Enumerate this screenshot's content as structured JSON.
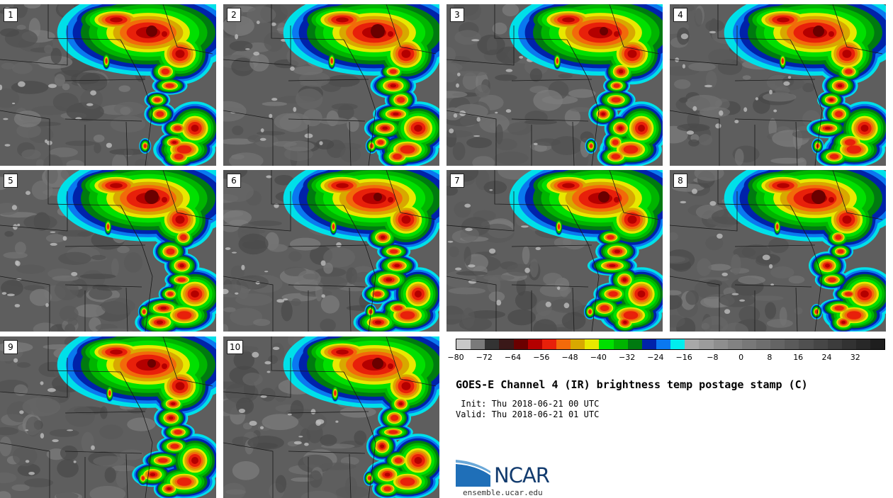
{
  "panels": [
    {
      "label": "1"
    },
    {
      "label": "2"
    },
    {
      "label": "3"
    },
    {
      "label": "4"
    },
    {
      "label": "5"
    },
    {
      "label": "6"
    },
    {
      "label": "7"
    },
    {
      "label": "8"
    },
    {
      "label": "9"
    },
    {
      "label": "10"
    }
  ],
  "colorbar": {
    "colors": [
      "#c8c8c8",
      "#7a7a7a",
      "#333333",
      "#3a1818",
      "#6b0000",
      "#b40000",
      "#e8200a",
      "#f26a0a",
      "#d8a800",
      "#e8e800",
      "#00e000",
      "#00b400",
      "#007a10",
      "#0022aa",
      "#0a78f0",
      "#00eeee",
      "#a8a8a8",
      "#9c9c9c",
      "#8e8e8e",
      "#828282",
      "#787878",
      "#6e6e6e",
      "#646464",
      "#5a5a5a",
      "#505050",
      "#464646",
      "#3c3c3c",
      "#323232",
      "#282828",
      "#1e1e1e"
    ],
    "ticks": [
      "−80",
      "−72",
      "−64",
      "−56",
      "−48",
      "−40",
      "−32",
      "−24",
      "−16",
      "−8",
      "0",
      "8",
      "16",
      "24",
      "32"
    ]
  },
  "title": "GOES-E Channel 4 (IR) brightness temp postage stamp (C)",
  "init": " Init: Thu 2018-06-21 00 UTC",
  "valid": "Valid: Thu 2018-06-21 01 UTC",
  "logo": {
    "text": "NCAR",
    "url_text": "ensemble.ucar.edu"
  }
}
